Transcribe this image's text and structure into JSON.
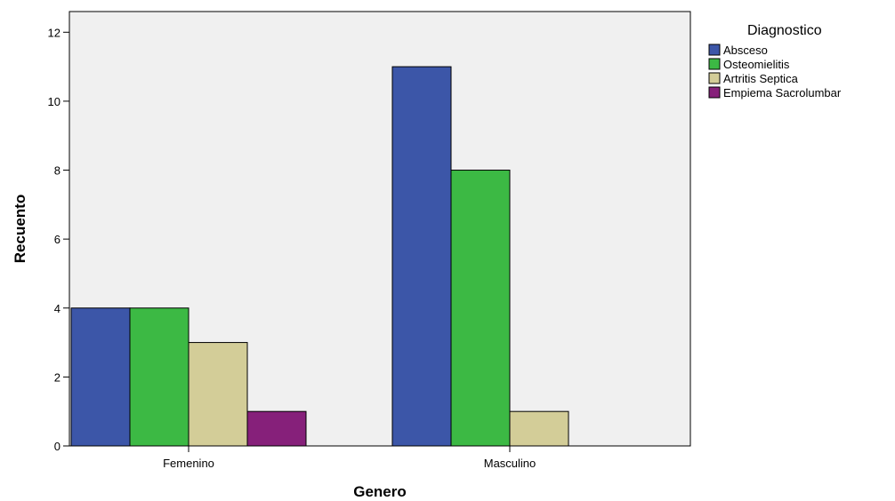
{
  "chart_data": {
    "type": "bar",
    "categories": [
      "Femenino",
      "Masculino"
    ],
    "series": [
      {
        "name": "Absceso",
        "color": "#3c56a8",
        "values": [
          4,
          11
        ]
      },
      {
        "name": "Osteomielitis",
        "color": "#3cb944",
        "values": [
          4,
          8
        ]
      },
      {
        "name": "Artritis Septica",
        "color": "#d3cd98",
        "values": [
          3,
          1
        ]
      },
      {
        "name": "Empiema Sacrolumbar",
        "color": "#86207a",
        "values": [
          1,
          0
        ]
      }
    ],
    "xlabel": "Genero",
    "ylabel": "Recuento",
    "ylim": [
      0,
      12.6
    ],
    "yticks": [
      0,
      2,
      4,
      6,
      8,
      10,
      12
    ],
    "legend_title": "Diagnostico",
    "legend_position": "right",
    "plot_background": "#f0f0f0"
  }
}
